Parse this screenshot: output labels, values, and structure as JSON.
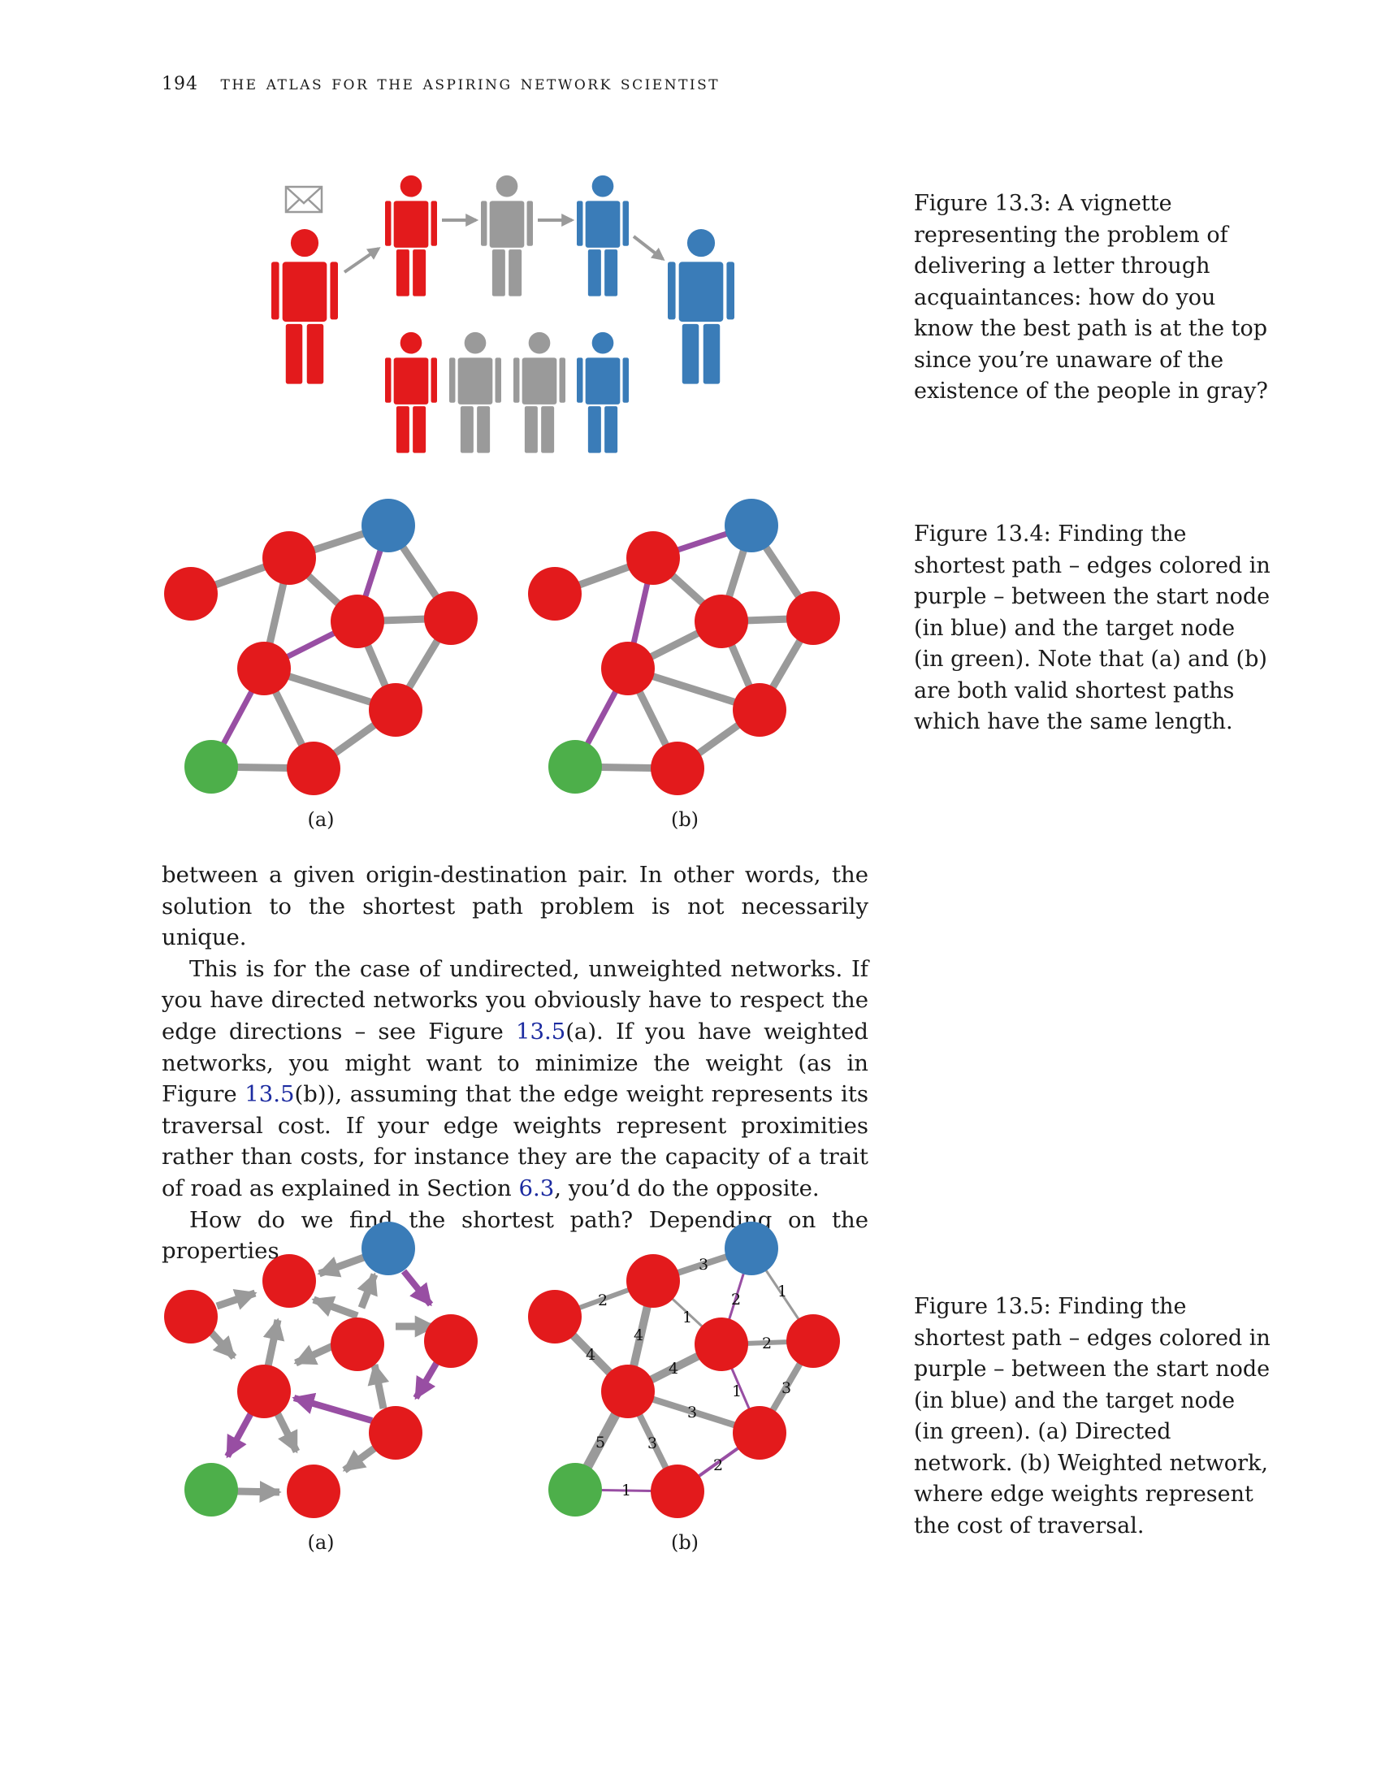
{
  "header": {
    "page_number": "194",
    "running_title": "the atlas for the aspiring network scientist"
  },
  "colors": {
    "red": "#e31a1c",
    "gray": "#9a9a9a",
    "blue": "#3a7cb8",
    "green": "#4daf4a",
    "purple": "#984ea3",
    "link": "#1c2ba0"
  },
  "figures": {
    "fig_13_3": {
      "caption": "Figure 13.3: A vignette representing the problem of delivering a letter through acquaintances: how do you know the best path is at the top since you’re unaware of the existence of the people in gray?",
      "icons": [
        "envelope-icon",
        "person-icon"
      ]
    },
    "fig_13_4": {
      "caption": "Figure 13.4: Finding the shortest path – edges colored in purple – between the start node (in blue) and the target node (in green). Note that (a) and (b) are both valid shortest paths which have the same length.",
      "panel_a_label": "(a)",
      "panel_b_label": "(b)"
    },
    "fig_13_5": {
      "caption": "Figure 13.5: Finding the shortest path – edges colored in purple – between the start node (in blue) and the target node (in green). (a) Directed network. (b) Weighted network, where edge weights represent the cost of traversal.",
      "panel_a_label": "(a)",
      "panel_b_label": "(b)",
      "edge_weights": {
        "A-B": "2",
        "B-C": "3",
        "B-D": "1",
        "C-D": "2",
        "C-F": "1",
        "D-F": "2",
        "A-E": "4",
        "B-E": "4",
        "D-E": "4",
        "E-G": "3",
        "D-G": "1",
        "F-G": "3",
        "E-I": "5",
        "E-H": "3",
        "G-H": "2",
        "H-I": "1"
      }
    }
  },
  "body": {
    "p1": "between a given origin-destination pair. In other words, the solution to the shortest path problem is not necessarily unique.",
    "p2_a": "This is for the case of undirected, unweighted networks. If you have directed networks you obviously have to respect the edge directions – see Figure ",
    "ref_13_5_a": "13.5",
    "p2_b": "(a). If you have weighted networks, you might want to minimize the weight (as in Figure ",
    "ref_13_5_b": "13.5",
    "p2_c": "(b)), assuming that the edge weight represents its traversal cost. If your edge weights represent proximities rather than costs, for instance they are the capacity of a trait of road as explained in Section ",
    "ref_6_3": "6.3",
    "p2_d": ", you’d do the opposite.",
    "p3": "How do we find the shortest path? Depending on the properties"
  }
}
